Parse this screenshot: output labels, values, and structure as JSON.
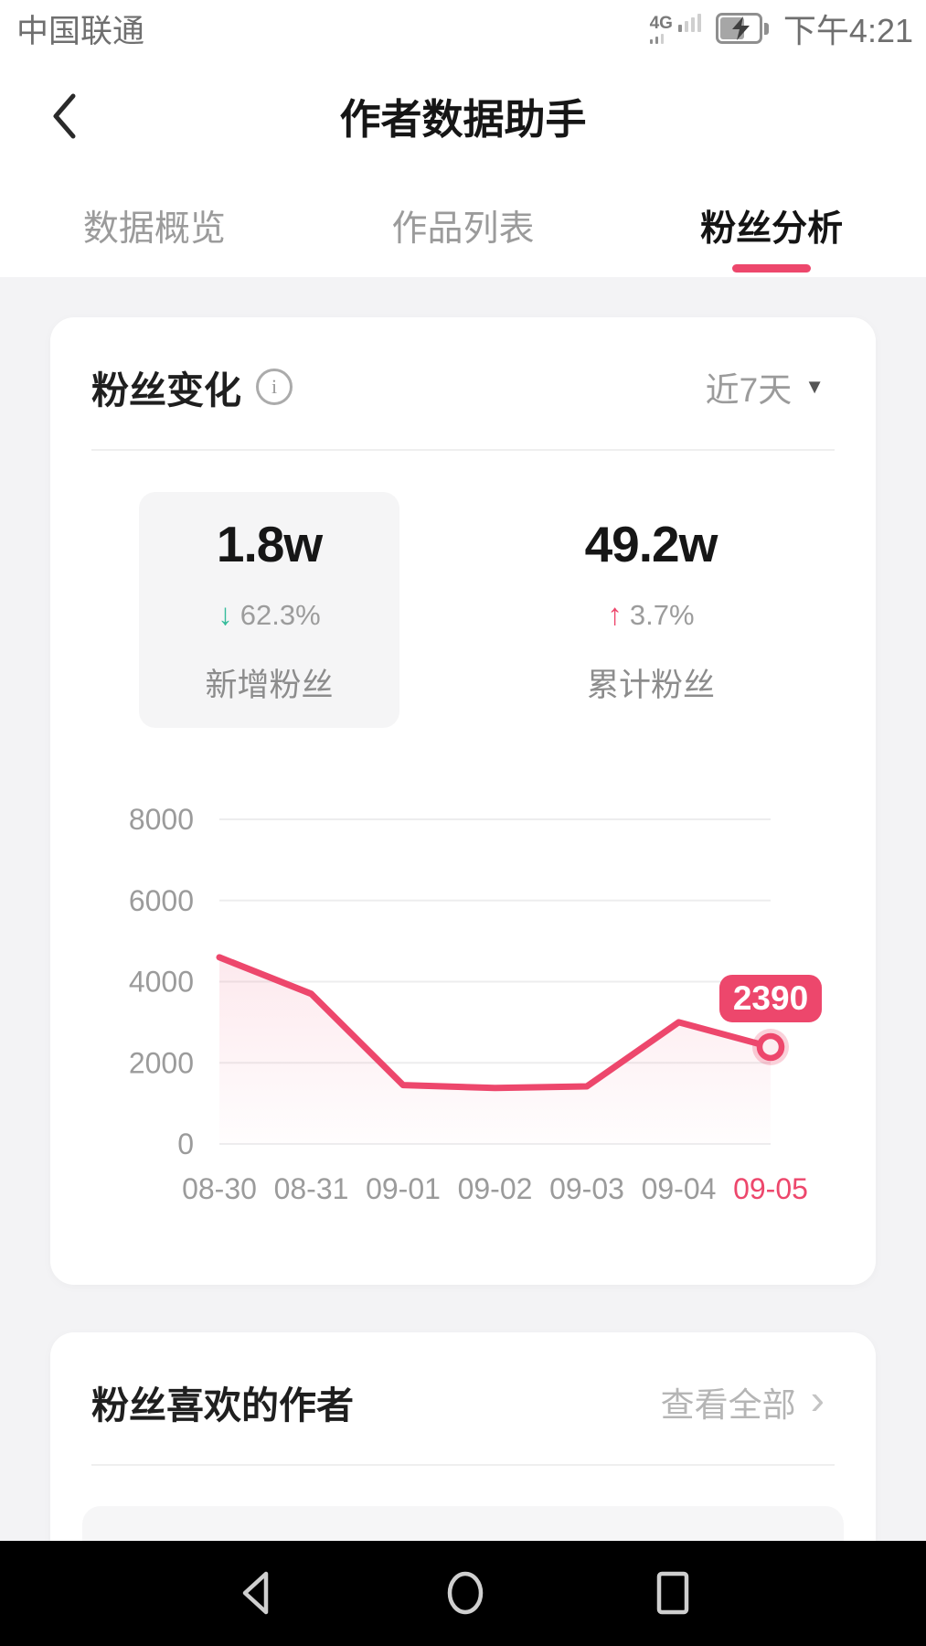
{
  "status_bar": {
    "carrier": "中国联通",
    "network": "4G",
    "time": "下午4:21"
  },
  "header": {
    "title": "作者数据助手"
  },
  "tabs": [
    {
      "label": "数据概览",
      "active": false
    },
    {
      "label": "作品列表",
      "active": false
    },
    {
      "label": "粉丝分析",
      "active": true
    }
  ],
  "fans_card": {
    "title": "粉丝变化",
    "info_icon": "i",
    "range_label": "近7天",
    "dropdown_icon": "▼",
    "stats": [
      {
        "value": "1.8w",
        "arrow": "↓",
        "change": "62.3%",
        "trend": "down",
        "label": "新增粉丝",
        "selected": true
      },
      {
        "value": "49.2w",
        "arrow": "↑",
        "change": "3.7%",
        "trend": "up",
        "label": "累计粉丝",
        "selected": false
      }
    ]
  },
  "chart_data": {
    "type": "line",
    "title": "粉丝变化 近7天",
    "categories": [
      "08-30",
      "08-31",
      "09-01",
      "09-02",
      "09-03",
      "09-04",
      "09-05"
    ],
    "values": [
      4600,
      3700,
      1450,
      1380,
      1420,
      3000,
      2390
    ],
    "yticks": [
      0,
      2000,
      4000,
      6000,
      8000
    ],
    "ylim": [
      0,
      8000
    ],
    "grid": true,
    "legend": false,
    "xlabel": "",
    "ylabel": "",
    "highlight_index": 6,
    "highlight_label": "2390",
    "line_color": "#ed476c",
    "highlight_color": "#ed476c",
    "axis_text_color": "#9b9b9b",
    "area_opacity": 0.12
  },
  "authors_card": {
    "title": "粉丝喜欢的作者",
    "view_all": "查看全部",
    "chevron_icon": "›"
  },
  "colors": {
    "accent": "#ed476c",
    "green_down": "#35bc9b",
    "page_bg": "#f3f3f5",
    "card_bg": "#ffffff"
  }
}
